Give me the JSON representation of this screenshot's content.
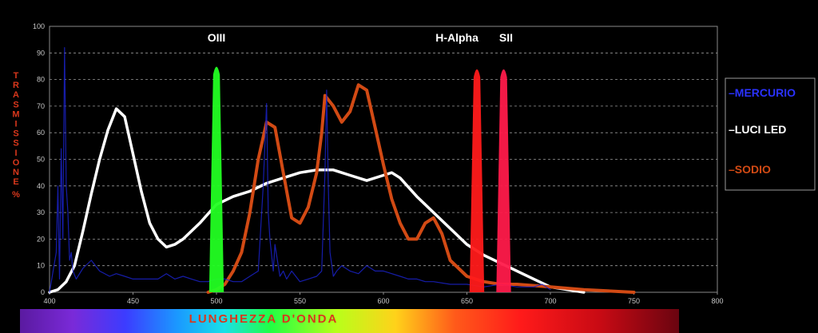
{
  "chart_data": {
    "type": "line",
    "title": "",
    "xlabel": "LUNGHEZZA D'ONDA",
    "ylabel": "TRASMISSIONE %",
    "xlim": [
      400,
      800
    ],
    "ylim": [
      0,
      100
    ],
    "x_ticks": [
      400,
      450,
      500,
      550,
      600,
      650,
      700,
      750,
      800
    ],
    "y_ticks": [
      0,
      10,
      20,
      30,
      40,
      50,
      60,
      70,
      80,
      90,
      100
    ],
    "grid": "horizontal dashed",
    "legend_position": "right",
    "series": [
      {
        "name": "MERCURIO",
        "color": "#1a22c8",
        "x": [
          400,
          404,
          405,
          406,
          407,
          408,
          409,
          410,
          411,
          412,
          413,
          414,
          416,
          420,
          425,
          430,
          436,
          440,
          445,
          450,
          455,
          460,
          465,
          470,
          475,
          480,
          485,
          490,
          495,
          500,
          505,
          510,
          515,
          520,
          525,
          528,
          530,
          531,
          532,
          534,
          535,
          538,
          540,
          542,
          545,
          550,
          555,
          560,
          563,
          565,
          566,
          567,
          568,
          570,
          572,
          575,
          580,
          585,
          590,
          595,
          600,
          605,
          610,
          615,
          620,
          625,
          630,
          640,
          650,
          660,
          670,
          680,
          690,
          695,
          700
        ],
        "y": [
          0,
          15,
          40,
          5,
          54,
          20,
          92,
          40,
          30,
          12,
          15,
          8,
          5,
          9,
          12,
          8,
          6,
          7,
          6,
          5,
          5,
          5,
          5,
          7,
          5,
          6,
          5,
          4,
          4,
          5,
          5,
          4,
          4,
          6,
          8,
          40,
          71,
          30,
          20,
          8,
          18,
          6,
          8,
          5,
          8,
          4,
          5,
          6,
          8,
          45,
          76,
          40,
          15,
          6,
          8,
          10,
          8,
          7,
          10,
          8,
          8,
          7,
          6,
          5,
          5,
          4,
          4,
          3,
          3,
          2,
          3,
          2,
          2,
          3,
          1
        ]
      },
      {
        "name": "LUCI LED",
        "color": "#ffffff",
        "x": [
          400,
          405,
          410,
          415,
          420,
          425,
          430,
          435,
          440,
          445,
          450,
          455,
          460,
          465,
          470,
          475,
          480,
          490,
          500,
          510,
          520,
          530,
          540,
          550,
          560,
          565,
          570,
          575,
          580,
          590,
          600,
          605,
          610,
          620,
          630,
          640,
          650,
          660,
          670,
          680,
          690,
          700,
          710,
          720
        ],
        "y": [
          0,
          1,
          4,
          10,
          23,
          37,
          50,
          61,
          69,
          66,
          52,
          38,
          26,
          20,
          17,
          18,
          20,
          26,
          33,
          36,
          38,
          41,
          43,
          45,
          46,
          46,
          46,
          45,
          44,
          42,
          44,
          45,
          43,
          36,
          30,
          24,
          18,
          14,
          11,
          8,
          5,
          2,
          1,
          0
        ]
      },
      {
        "name": "SODIO",
        "color": "#d24a14",
        "x": [
          495,
          500,
          505,
          510,
          515,
          520,
          525,
          530,
          535,
          540,
          545,
          550,
          555,
          560,
          563,
          565,
          570,
          575,
          580,
          585,
          590,
          595,
          600,
          605,
          610,
          615,
          620,
          625,
          630,
          635,
          640,
          650,
          660,
          670,
          680,
          700,
          720,
          750
        ],
        "y": [
          0,
          1,
          3,
          8,
          15,
          30,
          50,
          64,
          62,
          45,
          28,
          26,
          32,
          45,
          60,
          74,
          70,
          64,
          68,
          78,
          76,
          62,
          48,
          35,
          26,
          20,
          20,
          26,
          28,
          22,
          12,
          6,
          4,
          3,
          3,
          2,
          1,
          0
        ]
      }
    ],
    "filter_bands": [
      {
        "label": "OIII",
        "center": 500,
        "width": 2,
        "peak": 86,
        "color": "#22ff22"
      },
      {
        "label": "H-Alpha",
        "center": 656,
        "width": 2,
        "peak": 85,
        "color": "#ff1a1a"
      },
      {
        "label": "SII",
        "center": 672,
        "width": 2,
        "peak": 85,
        "color": "#ff1a4a"
      }
    ]
  },
  "legend": {
    "items": [
      {
        "label": "MERCURIO",
        "color": "#2a32ff"
      },
      {
        "label": "LUCI LED",
        "color": "#ffffff"
      },
      {
        "label": "SODIO",
        "color": "#d24a14"
      }
    ]
  },
  "x_axis_label": "LUNGHEZZA D'ONDA",
  "y_axis_label": "TRASMISSIONE %"
}
